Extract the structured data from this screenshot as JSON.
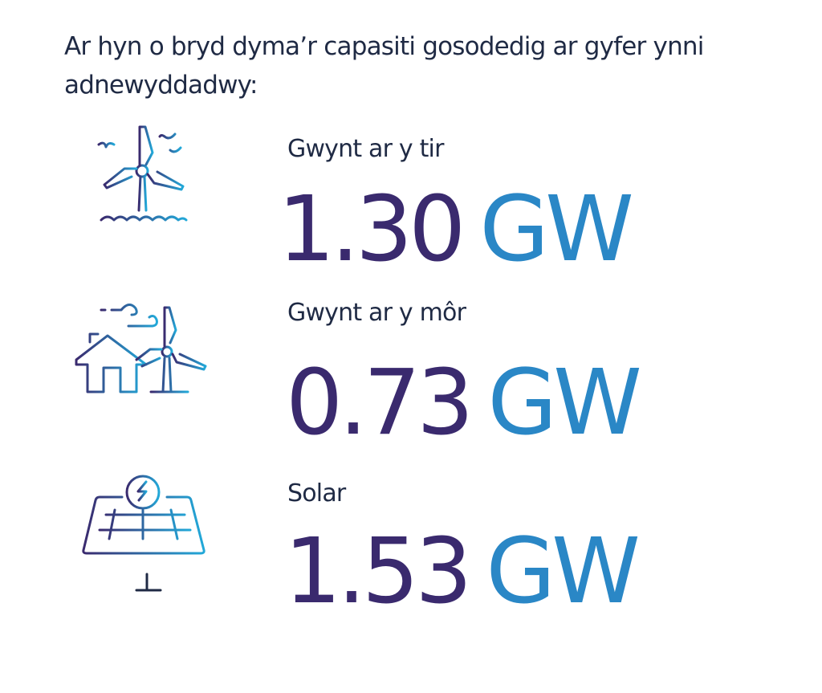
{
  "heading": "Ar hyn o bryd dyma’r capasiti gosodedig ar gyfer ynni adnewyddadwy:",
  "colors": {
    "number": "#3a2a6e",
    "unit": "#2a87c6",
    "text": "#1f2a44",
    "icon_start": "#3a2a6e",
    "icon_end": "#22a9d9"
  },
  "items": [
    {
      "label": "Gwynt ar y tir",
      "value": "1.30",
      "unit": "GW",
      "icon": "wind-turbine-water-icon"
    },
    {
      "label": "Gwynt ar y môr",
      "value": "0.73",
      "unit": "GW",
      "icon": "house-wind-turbine-icon"
    },
    {
      "label": "Solar",
      "value": "1.53",
      "unit": "GW",
      "icon": "solar-panel-icon"
    }
  ]
}
